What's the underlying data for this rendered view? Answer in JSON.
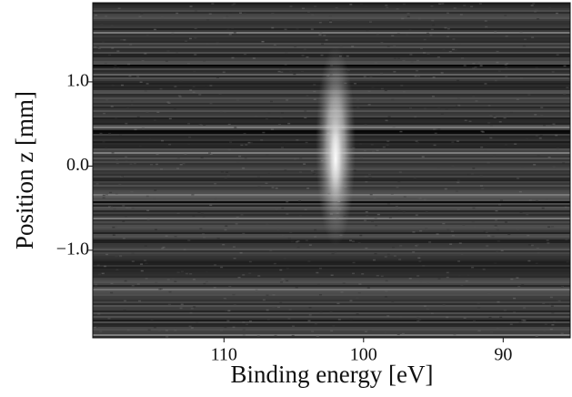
{
  "chart_data": {
    "type": "heatmap",
    "x_label": "Binding energy [eV]",
    "y_label": "Position z [mm]",
    "xlim": [
      119.4,
      85.2
    ],
    "xticks": [
      110,
      100,
      90
    ],
    "ylim": [
      -2.04,
      1.94
    ],
    "yticks": [
      {
        "value": 1.0,
        "label": "1.0"
      },
      {
        "value": 0.0,
        "label": "0.0"
      },
      {
        "value": -1.0,
        "label": "−1.0"
      }
    ],
    "colormap": "gray"
  }
}
